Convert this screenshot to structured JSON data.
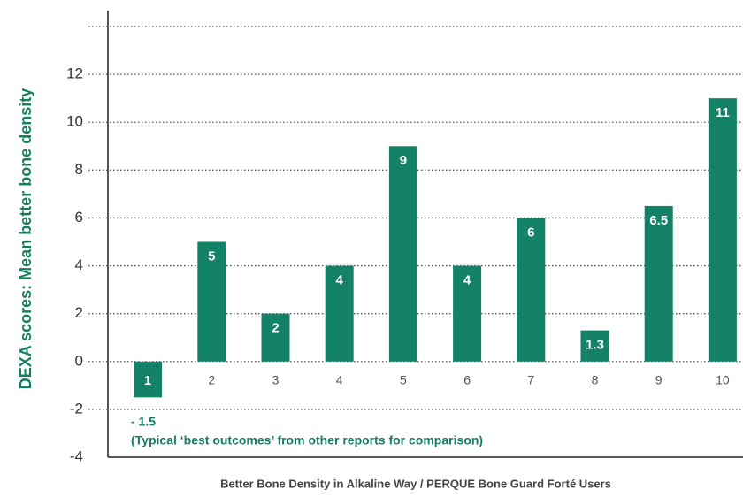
{
  "chart_data": {
    "type": "bar",
    "x_label": "Better Bone Density in Alkaline Way / PERQUE Bone Guard Forté Users",
    "y_label": "DEXA scores: Mean better bone density",
    "annotation": "(Typical ‘best outcomes’ from other reports for comparison)",
    "categories": [
      "1",
      "2",
      "3",
      "4",
      "5",
      "6",
      "7",
      "8",
      "9",
      "10"
    ],
    "values": [
      -1.5,
      5,
      2,
      4,
      9,
      4,
      6,
      1.3,
      6.5,
      11
    ],
    "value_labels": [
      "- 1.5",
      "5",
      "2",
      "4",
      "9",
      "4",
      "6",
      "1.3",
      "6.5",
      "11"
    ],
    "color": "#138266",
    "ylim": [
      -4,
      14
    ],
    "yticks": [
      -4,
      -2,
      0,
      2,
      4,
      6,
      8,
      10,
      12
    ],
    "grid": true
  }
}
